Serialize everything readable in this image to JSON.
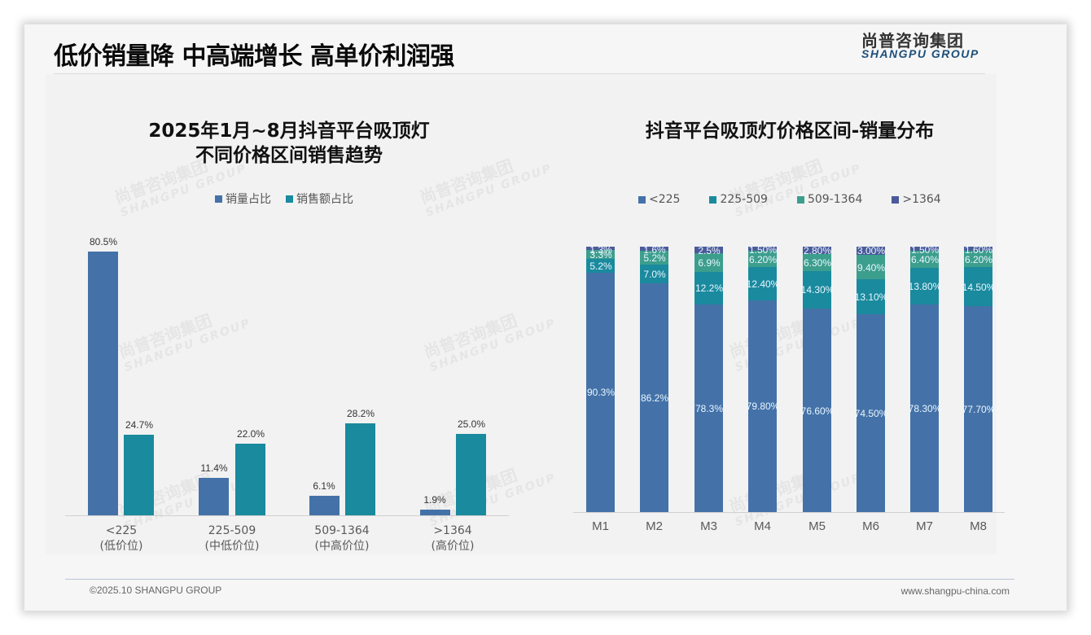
{
  "header": {
    "title": "低价销量降 中高端增长 高单价利润强",
    "logo_cn": "尚普咨询集团",
    "logo_en": "SHANGPU GROUP"
  },
  "watermark": {
    "cn": "尚普咨询集团",
    "en": "SHANGPU GROUP"
  },
  "colors": {
    "sales_volume": "#4472a8",
    "sales_amount": "#1a8a9e",
    "lt225": "#4472a8",
    "r225_509": "#1a8a9e",
    "r509_1364": "#3c9e8c",
    "gt1364": "#4a5b9a"
  },
  "left_chart": {
    "title_line1": "2025年1月~8月抖音平台吸顶灯",
    "title_line2": "不同价格区间销售趋势",
    "legend": [
      "销量占比",
      "销售额占比"
    ],
    "categories": [
      {
        "range": "<225",
        "tier": "(低价位)"
      },
      {
        "range": "225-509",
        "tier": "(中低价位)"
      },
      {
        "range": "509-1364",
        "tier": "(中高价位)"
      },
      {
        "range": ">1364",
        "tier": "(高价位)"
      }
    ],
    "volume_labels": [
      "80.5%",
      "11.4%",
      "6.1%",
      "1.9%"
    ],
    "amount_labels": [
      "24.7%",
      "22.0%",
      "28.2%",
      "25.0%"
    ]
  },
  "right_chart": {
    "title": "抖音平台吸顶灯价格区间-销量分布",
    "legend": [
      "<225",
      "225-509",
      "509-1364",
      ">1364"
    ],
    "months": [
      "M1",
      "M2",
      "M3",
      "M4",
      "M5",
      "M6",
      "M7",
      "M8"
    ],
    "labels": {
      "lt225": [
        "90.3%",
        "86.2%",
        "78.3%",
        "79.80%",
        "76.60%",
        "74.50%",
        "78.30%",
        "77.70%"
      ],
      "r225_509": [
        "5.2%",
        "7.0%",
        "12.2%",
        "12.40%",
        "14.30%",
        "13.10%",
        "13.80%",
        "14.50%"
      ],
      "r509_1364": [
        "3.3%",
        "5.2%",
        "6.9%",
        "6.20%",
        "6.30%",
        "9.40%",
        "6.40%",
        "6.20%"
      ],
      "gt1364": [
        "1.3%",
        "1.6%",
        "2.5%",
        "1.50%",
        "2.80%",
        "3.00%",
        "1.50%",
        "1.60%"
      ]
    }
  },
  "chart_data": [
    {
      "type": "bar",
      "title": "2025年1月~8月抖音平台吸顶灯 不同价格区间销售趋势",
      "categories": [
        "<225 (低价位)",
        "225-509 (中低价位)",
        "509-1364 (中高价位)",
        ">1364 (高价位)"
      ],
      "series": [
        {
          "name": "销量占比",
          "values": [
            80.5,
            11.4,
            6.1,
            1.9
          ]
        },
        {
          "name": "销售额占比",
          "values": [
            24.7,
            22.0,
            28.2,
            25.0
          ]
        }
      ],
      "xlabel": "",
      "ylabel": "",
      "ylim": [
        0,
        85
      ],
      "legend_position": "top",
      "grid": false
    },
    {
      "type": "bar",
      "stacked": true,
      "title": "抖音平台吸顶灯价格区间-销量分布",
      "categories": [
        "M1",
        "M2",
        "M3",
        "M4",
        "M5",
        "M6",
        "M7",
        "M8"
      ],
      "series": [
        {
          "name": "<225",
          "values": [
            90.3,
            86.2,
            78.3,
            79.8,
            76.6,
            74.5,
            78.3,
            77.7
          ]
        },
        {
          "name": "225-509",
          "values": [
            5.2,
            7.0,
            12.2,
            12.4,
            14.3,
            13.1,
            13.8,
            14.5
          ]
        },
        {
          "name": "509-1364",
          "values": [
            3.3,
            5.2,
            6.9,
            6.2,
            6.3,
            9.4,
            6.4,
            6.2
          ]
        },
        {
          "name": ">1364",
          "values": [
            1.3,
            1.6,
            2.5,
            1.5,
            2.8,
            3.0,
            1.5,
            1.6
          ]
        }
      ],
      "xlabel": "",
      "ylabel": "",
      "ylim": [
        0,
        100
      ],
      "legend_position": "top",
      "grid": false
    }
  ],
  "footer": {
    "copyright": "©2025.10 SHANGPU GROUP",
    "website": "www.shangpu-china.com"
  }
}
